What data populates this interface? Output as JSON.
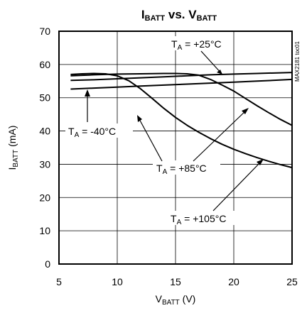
{
  "chart_data": {
    "type": "line",
    "title": {
      "main1": "I",
      "sub1": "BATT",
      "main2": " vs. V",
      "sub2": "BATT"
    },
    "xlabel": {
      "main": "V",
      "sub": "BATT",
      "rest": " (V)"
    },
    "ylabel": {
      "main": "I",
      "sub": "BATT",
      "rest": " (mA)"
    },
    "xlim": [
      5,
      25
    ],
    "ylim": [
      0,
      70
    ],
    "xticks": [
      5,
      10,
      15,
      20,
      25
    ],
    "yticks": [
      0,
      10,
      20,
      30,
      40,
      50,
      60,
      70
    ],
    "grid": true,
    "code": "MAX2181 toc01",
    "series": [
      {
        "key": "t25",
        "label": {
          "main": "T",
          "sub": "A",
          "rest": " = +25°C"
        },
        "points": [
          [
            6,
            55.2
          ],
          [
            8,
            55.4
          ],
          [
            10,
            55.7
          ],
          [
            12,
            56.0
          ],
          [
            14,
            56.3
          ],
          [
            16,
            56.6
          ],
          [
            18,
            56.9
          ],
          [
            20,
            57.1
          ],
          [
            22,
            57.3
          ],
          [
            25,
            57.6
          ]
        ]
      },
      {
        "key": "tm40",
        "label": {
          "main": "T",
          "sub": "A",
          "rest": " = -40°C"
        },
        "points": [
          [
            6,
            52.6
          ],
          [
            8,
            52.9
          ],
          [
            10,
            53.2
          ],
          [
            12,
            53.5
          ],
          [
            14,
            53.8
          ],
          [
            16,
            54.1
          ],
          [
            18,
            54.4
          ],
          [
            20,
            54.7
          ],
          [
            22,
            55.0
          ],
          [
            25,
            55.5
          ]
        ]
      },
      {
        "key": "t85",
        "label": {
          "main": "T",
          "sub": "A",
          "rest": " = +85°C"
        },
        "points": [
          [
            6,
            56.6
          ],
          [
            8,
            56.9
          ],
          [
            10,
            57.1
          ],
          [
            12,
            57.2
          ],
          [
            14,
            57.3
          ],
          [
            15,
            57.3
          ],
          [
            16,
            57.2
          ],
          [
            17,
            56.8
          ],
          [
            18,
            55.5
          ],
          [
            19,
            53.8
          ],
          [
            20,
            52.0
          ],
          [
            21,
            49.8
          ],
          [
            22,
            47.6
          ],
          [
            23,
            45.5
          ],
          [
            24,
            43.5
          ],
          [
            25,
            41.7
          ]
        ]
      },
      {
        "key": "t105",
        "label": {
          "main": "T",
          "sub": "A",
          "rest": " = +105°C"
        },
        "points": [
          [
            6,
            57.0
          ],
          [
            7,
            57.2
          ],
          [
            8,
            57.3
          ],
          [
            9,
            57.2
          ],
          [
            10,
            56.6
          ],
          [
            11,
            55.1
          ],
          [
            12,
            52.7
          ],
          [
            13,
            49.8
          ],
          [
            14,
            46.8
          ],
          [
            15,
            44.1
          ],
          [
            16,
            41.7
          ],
          [
            17,
            39.6
          ],
          [
            18,
            37.7
          ],
          [
            19,
            36.0
          ],
          [
            20,
            34.5
          ],
          [
            21,
            33.2
          ],
          [
            22,
            32.0
          ],
          [
            23,
            30.9
          ],
          [
            24,
            29.9
          ],
          [
            25,
            29.0
          ]
        ]
      }
    ]
  }
}
